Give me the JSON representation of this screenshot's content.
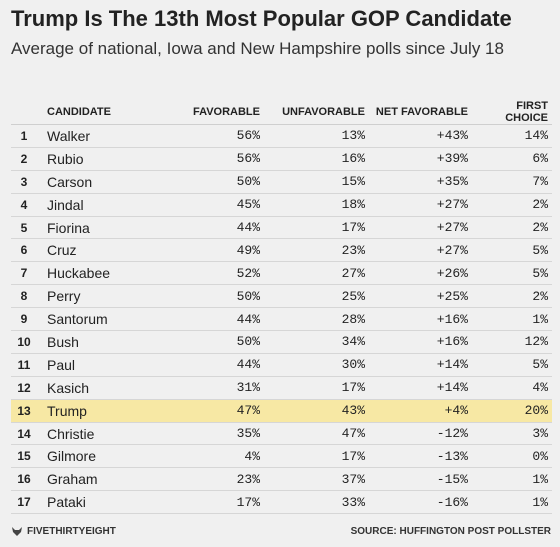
{
  "chart_data": {
    "type": "table",
    "title": "Trump Is The 13th Most Popular GOP Candidate",
    "subtitle": "Average of national, Iowa and New Hampshire polls since July 18",
    "columns": [
      "",
      "CANDIDATE",
      "FAVORABLE",
      "UNFAVORABLE",
      "NET FAVORABLE",
      "FIRST CHOICE"
    ],
    "rows": [
      {
        "rank": "1",
        "candidate": "Walker",
        "favorable": "56%",
        "unfavorable": "13%",
        "net": "+43%",
        "first": "14%"
      },
      {
        "rank": "2",
        "candidate": "Rubio",
        "favorable": "56%",
        "unfavorable": "16%",
        "net": "+39%",
        "first": "6%"
      },
      {
        "rank": "3",
        "candidate": "Carson",
        "favorable": "50%",
        "unfavorable": "15%",
        "net": "+35%",
        "first": "7%"
      },
      {
        "rank": "4",
        "candidate": "Jindal",
        "favorable": "45%",
        "unfavorable": "18%",
        "net": "+27%",
        "first": "2%"
      },
      {
        "rank": "5",
        "candidate": "Fiorina",
        "favorable": "44%",
        "unfavorable": "17%",
        "net": "+27%",
        "first": "2%"
      },
      {
        "rank": "6",
        "candidate": "Cruz",
        "favorable": "49%",
        "unfavorable": "23%",
        "net": "+27%",
        "first": "5%"
      },
      {
        "rank": "7",
        "candidate": "Huckabee",
        "favorable": "52%",
        "unfavorable": "27%",
        "net": "+26%",
        "first": "5%"
      },
      {
        "rank": "8",
        "candidate": "Perry",
        "favorable": "50%",
        "unfavorable": "25%",
        "net": "+25%",
        "first": "2%"
      },
      {
        "rank": "9",
        "candidate": "Santorum",
        "favorable": "44%",
        "unfavorable": "28%",
        "net": "+16%",
        "first": "1%"
      },
      {
        "rank": "10",
        "candidate": "Bush",
        "favorable": "50%",
        "unfavorable": "34%",
        "net": "+16%",
        "first": "12%"
      },
      {
        "rank": "11",
        "candidate": "Paul",
        "favorable": "44%",
        "unfavorable": "30%",
        "net": "+14%",
        "first": "5%"
      },
      {
        "rank": "12",
        "candidate": "Kasich",
        "favorable": "31%",
        "unfavorable": "17%",
        "net": "+14%",
        "first": "4%"
      },
      {
        "rank": "13",
        "candidate": "Trump",
        "favorable": "47%",
        "unfavorable": "43%",
        "net": "+4%",
        "first": "20%"
      },
      {
        "rank": "14",
        "candidate": "Christie",
        "favorable": "35%",
        "unfavorable": "47%",
        "net": "-12%",
        "first": "3%"
      },
      {
        "rank": "15",
        "candidate": "Gilmore",
        "favorable": "4%",
        "unfavorable": "17%",
        "net": "-13%",
        "first": "0%"
      },
      {
        "rank": "16",
        "candidate": "Graham",
        "favorable": "23%",
        "unfavorable": "37%",
        "net": "-15%",
        "first": "1%"
      },
      {
        "rank": "17",
        "candidate": "Pataki",
        "favorable": "17%",
        "unfavorable": "33%",
        "net": "-16%",
        "first": "1%"
      }
    ],
    "highlight_candidate": "Trump",
    "highlight_color": "#f7e8a4"
  },
  "footer": {
    "brand": "FIVETHIRTYEIGHT",
    "source": "SOURCE: HUFFINGTON POST POLLSTER"
  },
  "colors": {
    "background": "#f0f0f0",
    "highlight": "#f7e8a4",
    "text": "#222222"
  },
  "icons": {
    "brand_logo": "fivethirtyeight-fox-icon"
  }
}
